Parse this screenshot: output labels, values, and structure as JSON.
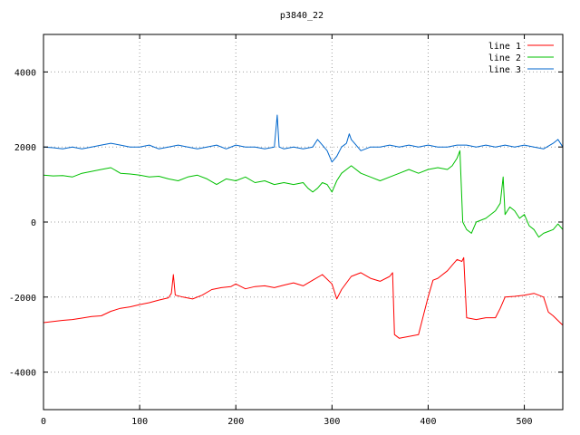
{
  "chart_data": {
    "type": "line",
    "title": "p3840_22",
    "xlabel": "",
    "ylabel": "",
    "xlim": [
      0,
      540
    ],
    "ylim": [
      -5000,
      5000
    ],
    "x_ticks": [
      0,
      100,
      200,
      300,
      400,
      500
    ],
    "y_ticks": [
      -4000,
      -2000,
      0,
      2000,
      4000
    ],
    "grid": true,
    "legend_position": "top-right",
    "series": [
      {
        "name": "line 1",
        "color": "#ff0000",
        "points": [
          [
            0,
            -2680
          ],
          [
            10,
            -2650
          ],
          [
            20,
            -2620
          ],
          [
            30,
            -2600
          ],
          [
            40,
            -2560
          ],
          [
            50,
            -2520
          ],
          [
            60,
            -2500
          ],
          [
            70,
            -2380
          ],
          [
            80,
            -2300
          ],
          [
            90,
            -2260
          ],
          [
            100,
            -2200
          ],
          [
            110,
            -2150
          ],
          [
            120,
            -2080
          ],
          [
            130,
            -2020
          ],
          [
            133,
            -1900
          ],
          [
            135,
            -1400
          ],
          [
            137,
            -1950
          ],
          [
            145,
            -2000
          ],
          [
            155,
            -2050
          ],
          [
            165,
            -1950
          ],
          [
            175,
            -1800
          ],
          [
            185,
            -1750
          ],
          [
            195,
            -1720
          ],
          [
            200,
            -1650
          ],
          [
            210,
            -1780
          ],
          [
            220,
            -1720
          ],
          [
            230,
            -1700
          ],
          [
            240,
            -1750
          ],
          [
            250,
            -1680
          ],
          [
            260,
            -1620
          ],
          [
            270,
            -1700
          ],
          [
            280,
            -1550
          ],
          [
            290,
            -1400
          ],
          [
            300,
            -1650
          ],
          [
            305,
            -2050
          ],
          [
            310,
            -1800
          ],
          [
            320,
            -1450
          ],
          [
            330,
            -1350
          ],
          [
            340,
            -1500
          ],
          [
            350,
            -1580
          ],
          [
            360,
            -1450
          ],
          [
            363,
            -1350
          ],
          [
            365,
            -3000
          ],
          [
            370,
            -3100
          ],
          [
            380,
            -3050
          ],
          [
            390,
            -3000
          ],
          [
            395,
            -2500
          ],
          [
            400,
            -2000
          ],
          [
            405,
            -1550
          ],
          [
            410,
            -1500
          ],
          [
            420,
            -1300
          ],
          [
            425,
            -1150
          ],
          [
            430,
            -1000
          ],
          [
            435,
            -1050
          ],
          [
            437,
            -950
          ],
          [
            440,
            -2550
          ],
          [
            450,
            -2600
          ],
          [
            460,
            -2550
          ],
          [
            470,
            -2550
          ],
          [
            475,
            -2300
          ],
          [
            480,
            -2000
          ],
          [
            490,
            -1980
          ],
          [
            500,
            -1950
          ],
          [
            510,
            -1900
          ],
          [
            520,
            -2000
          ],
          [
            525,
            -2400
          ],
          [
            530,
            -2500
          ],
          [
            540,
            -2750
          ]
        ]
      },
      {
        "name": "line 2",
        "color": "#00c000",
        "points": [
          [
            0,
            1250
          ],
          [
            10,
            1230
          ],
          [
            20,
            1240
          ],
          [
            30,
            1200
          ],
          [
            40,
            1300
          ],
          [
            50,
            1350
          ],
          [
            60,
            1400
          ],
          [
            70,
            1450
          ],
          [
            80,
            1300
          ],
          [
            90,
            1280
          ],
          [
            100,
            1250
          ],
          [
            110,
            1200
          ],
          [
            120,
            1220
          ],
          [
            130,
            1150
          ],
          [
            140,
            1100
          ],
          [
            150,
            1200
          ],
          [
            160,
            1250
          ],
          [
            170,
            1150
          ],
          [
            180,
            1000
          ],
          [
            190,
            1150
          ],
          [
            200,
            1100
          ],
          [
            210,
            1200
          ],
          [
            220,
            1050
          ],
          [
            230,
            1100
          ],
          [
            240,
            1000
          ],
          [
            250,
            1050
          ],
          [
            260,
            1000
          ],
          [
            270,
            1050
          ],
          [
            275,
            900
          ],
          [
            280,
            800
          ],
          [
            285,
            900
          ],
          [
            290,
            1050
          ],
          [
            295,
            1000
          ],
          [
            300,
            800
          ],
          [
            305,
            1100
          ],
          [
            310,
            1300
          ],
          [
            320,
            1500
          ],
          [
            330,
            1300
          ],
          [
            340,
            1200
          ],
          [
            350,
            1100
          ],
          [
            360,
            1200
          ],
          [
            370,
            1300
          ],
          [
            380,
            1400
          ],
          [
            390,
            1300
          ],
          [
            400,
            1400
          ],
          [
            410,
            1450
          ],
          [
            420,
            1400
          ],
          [
            425,
            1500
          ],
          [
            430,
            1700
          ],
          [
            433,
            1900
          ],
          [
            436,
            0
          ],
          [
            440,
            -200
          ],
          [
            445,
            -300
          ],
          [
            450,
            0
          ],
          [
            460,
            100
          ],
          [
            470,
            300
          ],
          [
            475,
            500
          ],
          [
            478,
            1200
          ],
          [
            480,
            200
          ],
          [
            485,
            400
          ],
          [
            490,
            300
          ],
          [
            495,
            100
          ],
          [
            500,
            200
          ],
          [
            505,
            -100
          ],
          [
            510,
            -200
          ],
          [
            515,
            -400
          ],
          [
            520,
            -300
          ],
          [
            525,
            -250
          ],
          [
            530,
            -200
          ],
          [
            535,
            -50
          ],
          [
            540,
            -200
          ]
        ]
      },
      {
        "name": "line 3",
        "color": "#0066cc",
        "points": [
          [
            0,
            2000
          ],
          [
            10,
            1980
          ],
          [
            20,
            1950
          ],
          [
            30,
            2000
          ],
          [
            40,
            1950
          ],
          [
            50,
            2000
          ],
          [
            60,
            2050
          ],
          [
            70,
            2100
          ],
          [
            80,
            2050
          ],
          [
            90,
            2000
          ],
          [
            100,
            2000
          ],
          [
            110,
            2050
          ],
          [
            120,
            1950
          ],
          [
            130,
            2000
          ],
          [
            140,
            2050
          ],
          [
            150,
            2000
          ],
          [
            160,
            1950
          ],
          [
            170,
            2000
          ],
          [
            180,
            2050
          ],
          [
            190,
            1950
          ],
          [
            200,
            2050
          ],
          [
            210,
            2000
          ],
          [
            220,
            2000
          ],
          [
            230,
            1950
          ],
          [
            240,
            2000
          ],
          [
            243,
            2850
          ],
          [
            245,
            2000
          ],
          [
            250,
            1950
          ],
          [
            260,
            2000
          ],
          [
            270,
            1950
          ],
          [
            280,
            2000
          ],
          [
            285,
            2200
          ],
          [
            290,
            2050
          ],
          [
            295,
            1900
          ],
          [
            300,
            1600
          ],
          [
            305,
            1750
          ],
          [
            310,
            2000
          ],
          [
            315,
            2100
          ],
          [
            318,
            2350
          ],
          [
            320,
            2200
          ],
          [
            325,
            2050
          ],
          [
            330,
            1900
          ],
          [
            340,
            2000
          ],
          [
            350,
            2000
          ],
          [
            360,
            2050
          ],
          [
            370,
            2000
          ],
          [
            380,
            2050
          ],
          [
            390,
            2000
          ],
          [
            400,
            2050
          ],
          [
            410,
            2000
          ],
          [
            420,
            2000
          ],
          [
            430,
            2050
          ],
          [
            440,
            2050
          ],
          [
            450,
            2000
          ],
          [
            460,
            2050
          ],
          [
            470,
            2000
          ],
          [
            480,
            2050
          ],
          [
            490,
            2000
          ],
          [
            500,
            2050
          ],
          [
            510,
            2000
          ],
          [
            520,
            1950
          ],
          [
            530,
            2100
          ],
          [
            535,
            2200
          ],
          [
            540,
            2000
          ]
        ]
      }
    ]
  }
}
